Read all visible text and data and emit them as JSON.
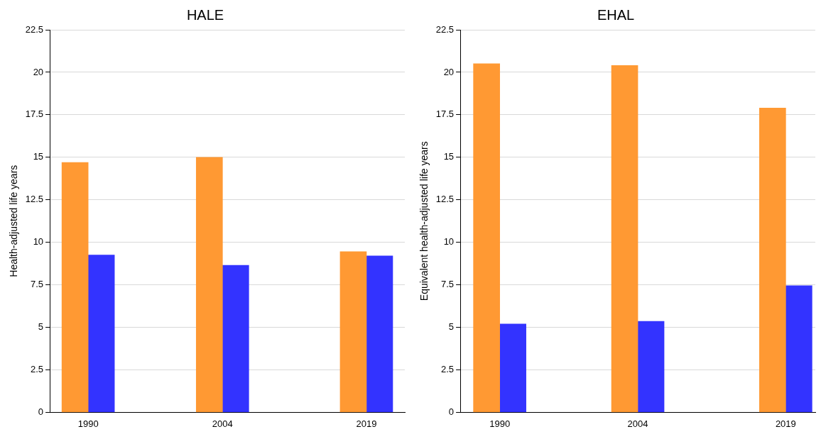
{
  "chart_data": [
    {
      "type": "bar",
      "title": "HALE",
      "ylabel": "Health-adjusted life years",
      "x": [
        1990,
        2004,
        2019
      ],
      "xlim": [
        1986,
        2023
      ],
      "xticks": [
        1990,
        2004,
        2019
      ],
      "ylim": [
        0,
        22.5
      ],
      "yticks": [
        0,
        2.5,
        5,
        7.5,
        10,
        12.5,
        15,
        17.5,
        20,
        22.5
      ],
      "grid": "y",
      "legend": false,
      "series": [
        {
          "color": "#ff9933",
          "values": [
            14.7,
            15.0,
            9.45
          ]
        },
        {
          "color": "#3333ff",
          "values": [
            9.25,
            8.65,
            9.2
          ]
        }
      ]
    },
    {
      "type": "bar",
      "title": "EHAL",
      "ylabel": "Equivalent health-adjusted life years",
      "x": [
        1990,
        2004,
        2019
      ],
      "xlim": [
        1986,
        2022
      ],
      "xticks": [
        1990,
        2004,
        2019
      ],
      "ylim": [
        0,
        22.5
      ],
      "yticks": [
        0,
        2.5,
        5,
        7.5,
        10,
        12.5,
        15,
        17.5,
        20,
        22.5
      ],
      "grid": "y",
      "legend": false,
      "series": [
        {
          "color": "#ff9933",
          "values": [
            20.5,
            20.4,
            17.9
          ]
        },
        {
          "color": "#3333ff",
          "values": [
            5.2,
            5.35,
            7.45
          ]
        }
      ]
    }
  ]
}
